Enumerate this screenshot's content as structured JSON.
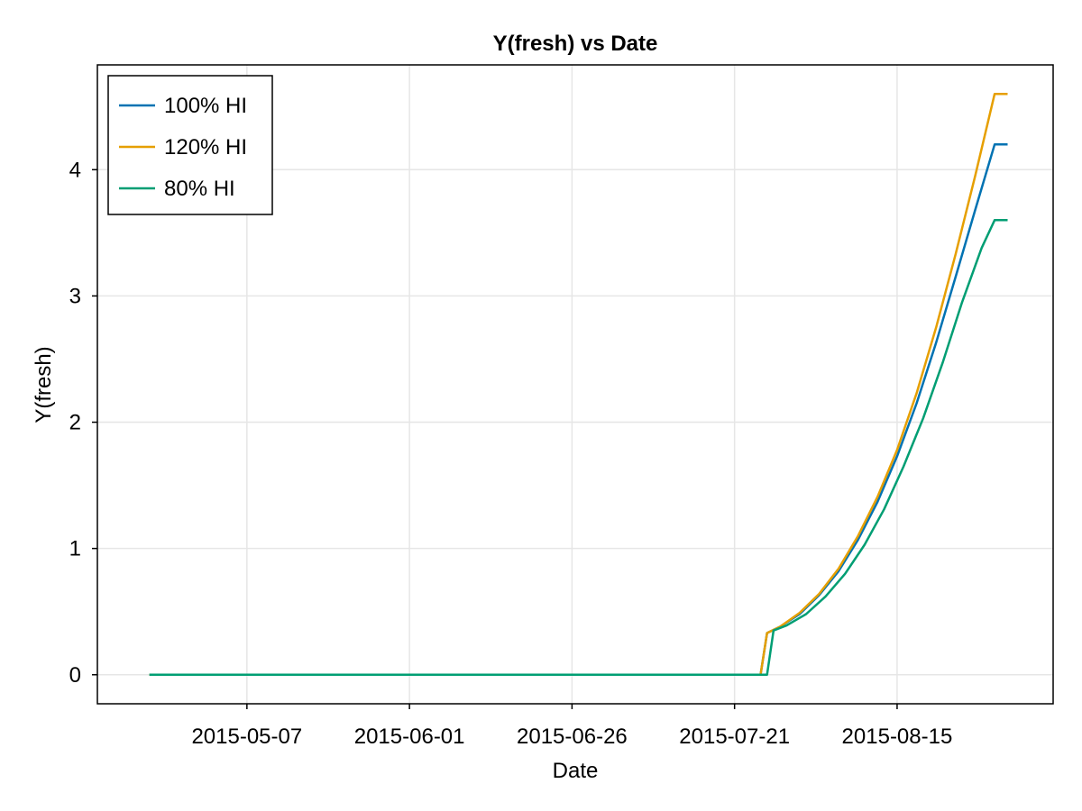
{
  "chart_data": {
    "type": "line",
    "title": "Y(fresh) vs Date",
    "xlabel": "Date",
    "ylabel": "Y(fresh)",
    "x_axis_kind": "date",
    "xlim": [
      "2015-04-14",
      "2015-09-08"
    ],
    "ylim": [
      -0.23,
      4.83
    ],
    "x_ticks": [
      "2015-05-07",
      "2015-06-01",
      "2015-06-26",
      "2015-07-21",
      "2015-08-15"
    ],
    "y_ticks": [
      0,
      1,
      2,
      3,
      4
    ],
    "grid": true,
    "legend_position": "top-left",
    "series": [
      {
        "name": "100% HI",
        "color": "#0072b2",
        "points": [
          [
            "2015-04-22",
            0
          ],
          [
            "2015-07-25",
            0
          ],
          [
            "2015-07-26",
            0.33
          ],
          [
            "2015-07-28",
            0.38
          ],
          [
            "2015-07-31",
            0.48
          ],
          [
            "2015-08-03",
            0.63
          ],
          [
            "2015-08-06",
            0.82
          ],
          [
            "2015-08-09",
            1.07
          ],
          [
            "2015-08-12",
            1.37
          ],
          [
            "2015-08-15",
            1.73
          ],
          [
            "2015-08-18",
            2.15
          ],
          [
            "2015-08-21",
            2.63
          ],
          [
            "2015-08-24",
            3.15
          ],
          [
            "2015-08-27",
            3.68
          ],
          [
            "2015-08-30",
            4.2
          ],
          [
            "2015-09-01",
            4.2
          ]
        ]
      },
      {
        "name": "120% HI",
        "color": "#e69f00",
        "points": [
          [
            "2015-04-22",
            0
          ],
          [
            "2015-07-25",
            0
          ],
          [
            "2015-07-26",
            0.33
          ],
          [
            "2015-07-28",
            0.38
          ],
          [
            "2015-07-31",
            0.49
          ],
          [
            "2015-08-03",
            0.64
          ],
          [
            "2015-08-06",
            0.84
          ],
          [
            "2015-08-09",
            1.1
          ],
          [
            "2015-08-12",
            1.41
          ],
          [
            "2015-08-15",
            1.78
          ],
          [
            "2015-08-18",
            2.23
          ],
          [
            "2015-08-21",
            2.75
          ],
          [
            "2015-08-24",
            3.33
          ],
          [
            "2015-08-27",
            3.95
          ],
          [
            "2015-08-30",
            4.6
          ],
          [
            "2015-09-01",
            4.6
          ]
        ]
      },
      {
        "name": "80% HI",
        "color": "#009e73",
        "points": [
          [
            "2015-04-22",
            0
          ],
          [
            "2015-07-26",
            0
          ],
          [
            "2015-07-27",
            0.35
          ],
          [
            "2015-07-29",
            0.39
          ],
          [
            "2015-08-01",
            0.48
          ],
          [
            "2015-08-04",
            0.62
          ],
          [
            "2015-08-07",
            0.8
          ],
          [
            "2015-08-10",
            1.03
          ],
          [
            "2015-08-13",
            1.31
          ],
          [
            "2015-08-16",
            1.65
          ],
          [
            "2015-08-19",
            2.03
          ],
          [
            "2015-08-22",
            2.47
          ],
          [
            "2015-08-25",
            2.95
          ],
          [
            "2015-08-28",
            3.38
          ],
          [
            "2015-08-30",
            3.6
          ],
          [
            "2015-09-01",
            3.6
          ]
        ]
      }
    ]
  }
}
